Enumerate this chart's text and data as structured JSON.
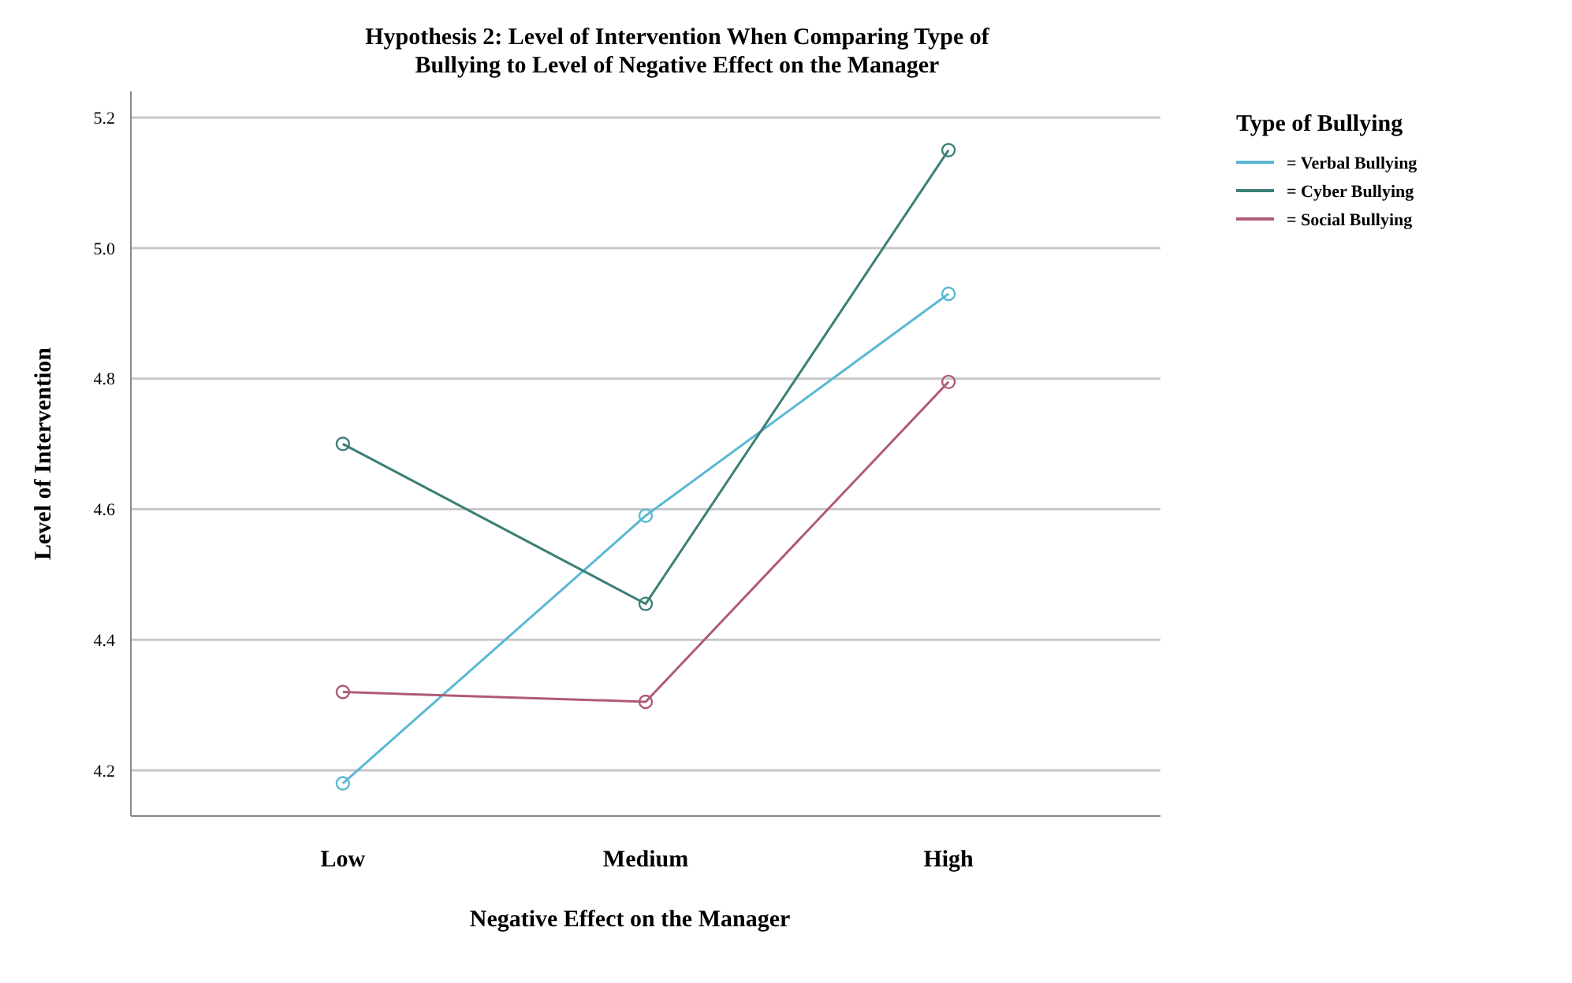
{
  "chart_data": {
    "type": "line",
    "title": "Hypothesis 2: Level of Intervention When Comparing Type of Bullying to Level of Negative Effect on the Manager",
    "xlabel": "Negative Effect on the Manager",
    "ylabel": "Level of Intervention",
    "legend_title": "Type of Bullying",
    "categories": [
      "Low",
      "Medium",
      "High"
    ],
    "series": [
      {
        "name": "= Verbal Bullying",
        "color": "#5bb8d4",
        "values": [
          4.18,
          4.59,
          4.93
        ]
      },
      {
        "name": "= Cyber Bullying",
        "color": "#3d7f78",
        "values": [
          4.7,
          4.455,
          5.15
        ]
      },
      {
        "name": "= Social Bullying",
        "color": "#b05a78",
        "values": [
          4.32,
          4.305,
          4.795
        ]
      }
    ],
    "ylim": [
      4.13,
      5.24
    ],
    "yticks": [
      {
        "value": 4.2,
        "label": "4.2"
      },
      {
        "value": 4.4,
        "label": "4.4"
      },
      {
        "value": 4.6,
        "label": "4.6"
      },
      {
        "value": 4.8,
        "label": "4.8"
      },
      {
        "value": 5.0,
        "label": "5.0"
      },
      {
        "value": 5.2,
        "label": "5.2"
      }
    ],
    "grid": "y",
    "legend": "right",
    "marker": "circle",
    "line_style": "solid"
  }
}
